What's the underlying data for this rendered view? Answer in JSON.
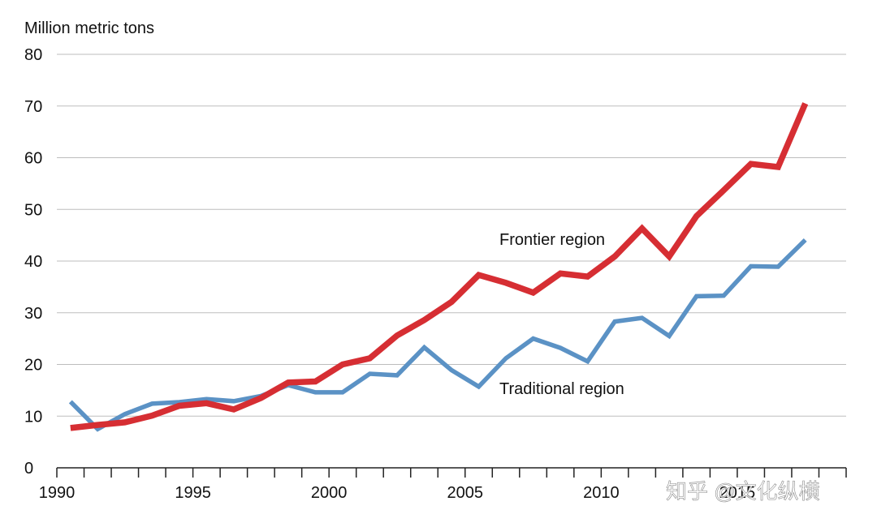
{
  "chart_data": {
    "type": "line",
    "title": "",
    "ylabel": "Million metric tons",
    "xlabel": "",
    "x": [
      1990,
      1991,
      1992,
      1993,
      1994,
      1995,
      1996,
      1997,
      1998,
      1999,
      2000,
      2001,
      2002,
      2003,
      2004,
      2005,
      2006,
      2007,
      2008,
      2009,
      2010,
      2011,
      2012,
      2013,
      2014,
      2015,
      2016,
      2017
    ],
    "xlim": [
      1989.5,
      2018.5
    ],
    "ylim": [
      0,
      80
    ],
    "x_ticks": [
      1990,
      1995,
      2000,
      2005,
      2010,
      2015
    ],
    "y_ticks": [
      0,
      10,
      20,
      30,
      40,
      50,
      60,
      70,
      80
    ],
    "grid": true,
    "series": [
      {
        "name": "Frontier region",
        "color": "#d62e33",
        "values": [
          7.7,
          8.3,
          8.8,
          10.1,
          12.0,
          12.5,
          11.3,
          13.5,
          16.5,
          16.7,
          20.0,
          21.2,
          25.6,
          28.6,
          32.1,
          37.3,
          35.8,
          33.9,
          37.6,
          37.0,
          40.9,
          46.3,
          40.9,
          48.7,
          53.7,
          58.8,
          58.2,
          70.5
        ]
      },
      {
        "name": "Traditional region",
        "color": "#5b92c5",
        "values": [
          12.8,
          7.5,
          10.4,
          12.4,
          12.7,
          13.3,
          12.9,
          13.9,
          16.0,
          14.6,
          14.6,
          18.2,
          17.9,
          23.3,
          18.9,
          15.7,
          21.2,
          25.0,
          23.2,
          20.6,
          28.3,
          29.0,
          25.5,
          33.2,
          33.3,
          39.0,
          38.9,
          44.1
        ]
      }
    ],
    "annotations": [
      "Frontier region",
      "Traditional region"
    ]
  },
  "watermark": "知乎 @文化纵横"
}
